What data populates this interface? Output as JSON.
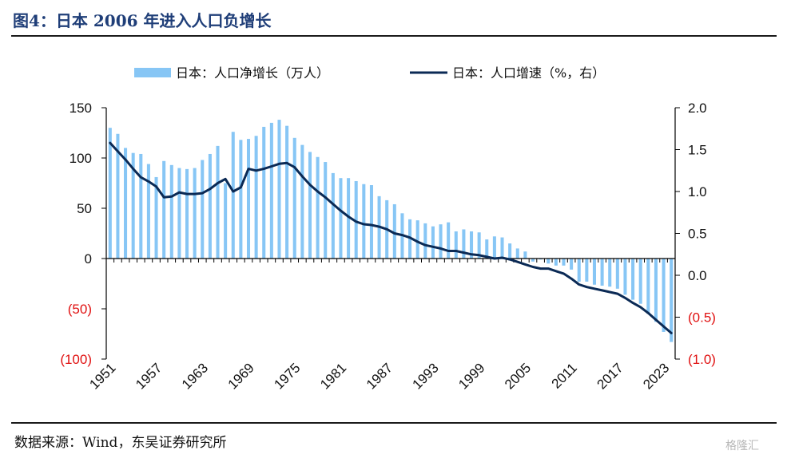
{
  "header": {
    "title": "图4：日本 2006 年进入人口负增长"
  },
  "footer": {
    "source": "数据来源：Wind，东吴证券研究所",
    "watermark": "格隆汇"
  },
  "colors": {
    "bar": "#87c6f5",
    "line": "#0b2a55",
    "negative": "#e01010",
    "title": "#1f3e78"
  },
  "chart_data": {
    "type": "bar+line",
    "categories": [
      1951,
      1952,
      1953,
      1954,
      1955,
      1956,
      1957,
      1958,
      1959,
      1960,
      1961,
      1962,
      1963,
      1964,
      1965,
      1966,
      1967,
      1968,
      1969,
      1970,
      1971,
      1972,
      1973,
      1974,
      1975,
      1976,
      1977,
      1978,
      1979,
      1980,
      1981,
      1982,
      1983,
      1984,
      1985,
      1986,
      1987,
      1988,
      1989,
      1990,
      1991,
      1992,
      1993,
      1994,
      1995,
      1996,
      1997,
      1998,
      1999,
      2000,
      2001,
      2002,
      2003,
      2004,
      2005,
      2006,
      2007,
      2008,
      2009,
      2010,
      2011,
      2012,
      2013,
      2014,
      2015,
      2016,
      2017,
      2018,
      2019,
      2020,
      2021,
      2022,
      2023,
      2024
    ],
    "x_tick_labels": [
      "1951",
      "1957",
      "1963",
      "1969",
      "1975",
      "1981",
      "1987",
      "1993",
      "1999",
      "2005",
      "2011",
      "2017",
      "2023"
    ],
    "series": [
      {
        "name": "日本：人口净增长（万人）",
        "type": "bar",
        "axis": "left",
        "values": [
          130,
          124,
          110,
          105,
          104,
          94,
          81,
          97,
          93,
          90,
          89,
          90,
          98,
          104,
          112,
          75,
          126,
          118,
          119,
          122,
          131,
          135,
          138,
          132,
          120,
          113,
          106,
          101,
          96,
          85,
          80,
          80,
          77,
          74,
          73,
          62,
          58,
          54,
          45,
          39,
          38,
          35,
          32,
          34,
          36,
          27,
          29,
          27,
          26,
          19,
          22,
          21,
          15,
          10,
          7,
          -3,
          -1,
          -5,
          -7,
          -7,
          -11,
          -23,
          -23,
          -26,
          -27,
          -28,
          -30,
          -36,
          -41,
          -45,
          -55,
          -63,
          -73,
          -83
        ]
      },
      {
        "name": "日本：人口增速（%，右）",
        "type": "line",
        "axis": "right",
        "values": [
          1.58,
          1.48,
          1.38,
          1.27,
          1.17,
          1.12,
          1.06,
          0.93,
          0.94,
          0.99,
          0.97,
          0.97,
          0.98,
          1.03,
          1.1,
          1.15,
          1.0,
          1.05,
          1.27,
          1.25,
          1.27,
          1.3,
          1.33,
          1.34,
          1.29,
          1.18,
          1.08,
          1.0,
          0.93,
          0.85,
          0.77,
          0.7,
          0.64,
          0.61,
          0.6,
          0.58,
          0.55,
          0.5,
          0.48,
          0.45,
          0.4,
          0.36,
          0.34,
          0.32,
          0.29,
          0.29,
          0.27,
          0.25,
          0.24,
          0.22,
          0.2,
          0.21,
          0.19,
          0.16,
          0.13,
          0.1,
          0.08,
          0.08,
          0.05,
          0.02,
          -0.04,
          -0.11,
          -0.14,
          -0.16,
          -0.18,
          -0.2,
          -0.22,
          -0.27,
          -0.33,
          -0.38,
          -0.45,
          -0.53,
          -0.61,
          -0.69
        ]
      }
    ],
    "y_left": {
      "min": -100,
      "max": 150,
      "ticks": [
        150,
        100,
        50,
        0,
        -50,
        -100
      ],
      "tick_labels": [
        "150",
        "100",
        "50",
        "0",
        "(50)",
        "(100)"
      ]
    },
    "y_right": {
      "min": -1.0,
      "max": 2.0,
      "ticks": [
        2.0,
        1.5,
        1.0,
        0.5,
        0.0,
        -0.5,
        -1.0
      ],
      "tick_labels": [
        "2.0",
        "1.5",
        "1.0",
        "0.5",
        "0.0",
        "(0.5)",
        "(1.0)"
      ]
    },
    "legend": [
      {
        "label": "日本：人口净增长（万人）",
        "kind": "bar"
      },
      {
        "label": "日本：人口增速（%，右）",
        "kind": "line"
      }
    ],
    "legend_position": "top-center"
  }
}
